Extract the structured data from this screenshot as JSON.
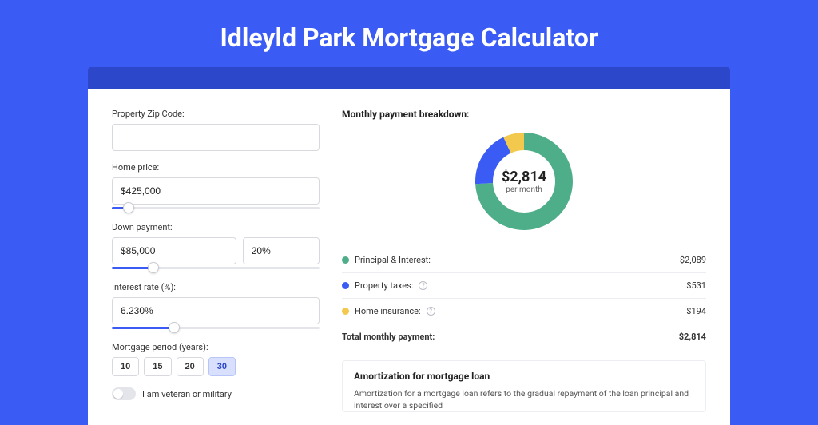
{
  "title": "Idleyld Park Mortgage Calculator",
  "colors": {
    "page_bg": "#3b5bf5",
    "header_bar": "#2c47c9",
    "card_bg": "#ffffff",
    "accent": "#3b5bf5"
  },
  "form": {
    "zip": {
      "label": "Property Zip Code:",
      "value": ""
    },
    "home_price": {
      "label": "Home price:",
      "value": "$425,000",
      "slider_pct": 8
    },
    "down_payment": {
      "label": "Down payment:",
      "amount": "$85,000",
      "percent": "20%",
      "slider_pct": 20
    },
    "interest": {
      "label": "Interest rate (%):",
      "value": "6.230%",
      "slider_pct": 30
    },
    "period": {
      "label": "Mortgage period (years):",
      "options": [
        "10",
        "15",
        "20",
        "30"
      ],
      "selected": "30"
    },
    "veteran": {
      "label": "I am veteran or military",
      "checked": false
    }
  },
  "breakdown": {
    "title": "Monthly payment breakdown:",
    "center_value": "$2,814",
    "center_sub": "per month",
    "items": [
      {
        "label": "Principal & Interest:",
        "value": "$2,089",
        "color": "#4fae8a",
        "has_info": false,
        "arc_start": 0,
        "arc_end": 267
      },
      {
        "label": "Property taxes:",
        "value": "$531",
        "color": "#3b5bf5",
        "has_info": true,
        "arc_start": 267,
        "arc_end": 335
      },
      {
        "label": "Home insurance:",
        "value": "$194",
        "color": "#f2c94c",
        "has_info": true,
        "arc_start": 335,
        "arc_end": 360
      }
    ],
    "total_label": "Total monthly payment:",
    "total_value": "$2,814"
  },
  "amort": {
    "title": "Amortization for mortgage loan",
    "text": "Amortization for a mortgage loan refers to the gradual repayment of the loan principal and interest over a specified"
  }
}
